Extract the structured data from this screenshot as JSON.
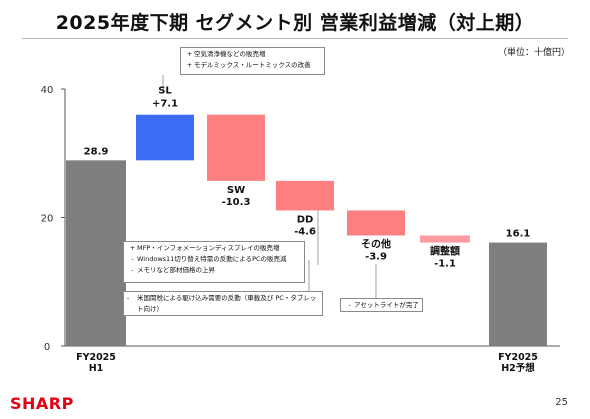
{
  "title": "2025年度下期 セグメント別 営業利益増減（対上期）",
  "unit": "（単位：十億円）",
  "page_number": "25",
  "logo_text": "SHARP",
  "colors": {
    "total": "#7f7f7f",
    "increase": "#3b6ef5",
    "decrease": "#ff7f80",
    "decrease_light": "#ff9aa0"
  },
  "chart_data": {
    "type": "waterfall",
    "ylim": [
      0,
      40
    ],
    "yticks": [
      0,
      20,
      40
    ],
    "grid": false,
    "bars": [
      {
        "label": "FY2025\nH1",
        "kind": "total",
        "value": 28.9,
        "value_label": "28.9",
        "name": "",
        "label_pos": "bottom"
      },
      {
        "label": "SL",
        "kind": "delta",
        "value": 7.1,
        "value_label": "+7.1",
        "name": "SL",
        "label_pos": "above"
      },
      {
        "label": "SW",
        "kind": "delta",
        "value": -10.3,
        "value_label": "-10.3",
        "name": "SW",
        "label_pos": "below"
      },
      {
        "label": "DD",
        "kind": "delta",
        "value": -4.6,
        "value_label": "-4.6",
        "name": "DD",
        "label_pos": "below"
      },
      {
        "label": "その他",
        "kind": "delta",
        "value": -3.9,
        "value_label": "-3.9",
        "name": "その他",
        "label_pos": "below"
      },
      {
        "label": "調整額",
        "kind": "delta",
        "value": -1.1,
        "value_label": "-1.1",
        "name": "調整額",
        "label_pos": "below"
      },
      {
        "label": "FY2025\nH2予想",
        "kind": "total",
        "value": 16.1,
        "value_label": "16.1",
        "name": "",
        "label_pos": "bottom"
      }
    ]
  },
  "notes": {
    "sl": [
      "空気清浄機などの販売増",
      "モデルミックス・ルートミックスの改善"
    ],
    "sw_dd": [
      "MFP・インフォメーションディスプレイの販売増",
      "Windows11切り替え特需の反動によるPCの販売減",
      "メモリなど部材価格の上昇"
    ],
    "dd": [
      "米国関税による駆け込み需要の反動（車載及び PC・タブレット向け）"
    ],
    "other": [
      "アセットライトが完了"
    ]
  }
}
